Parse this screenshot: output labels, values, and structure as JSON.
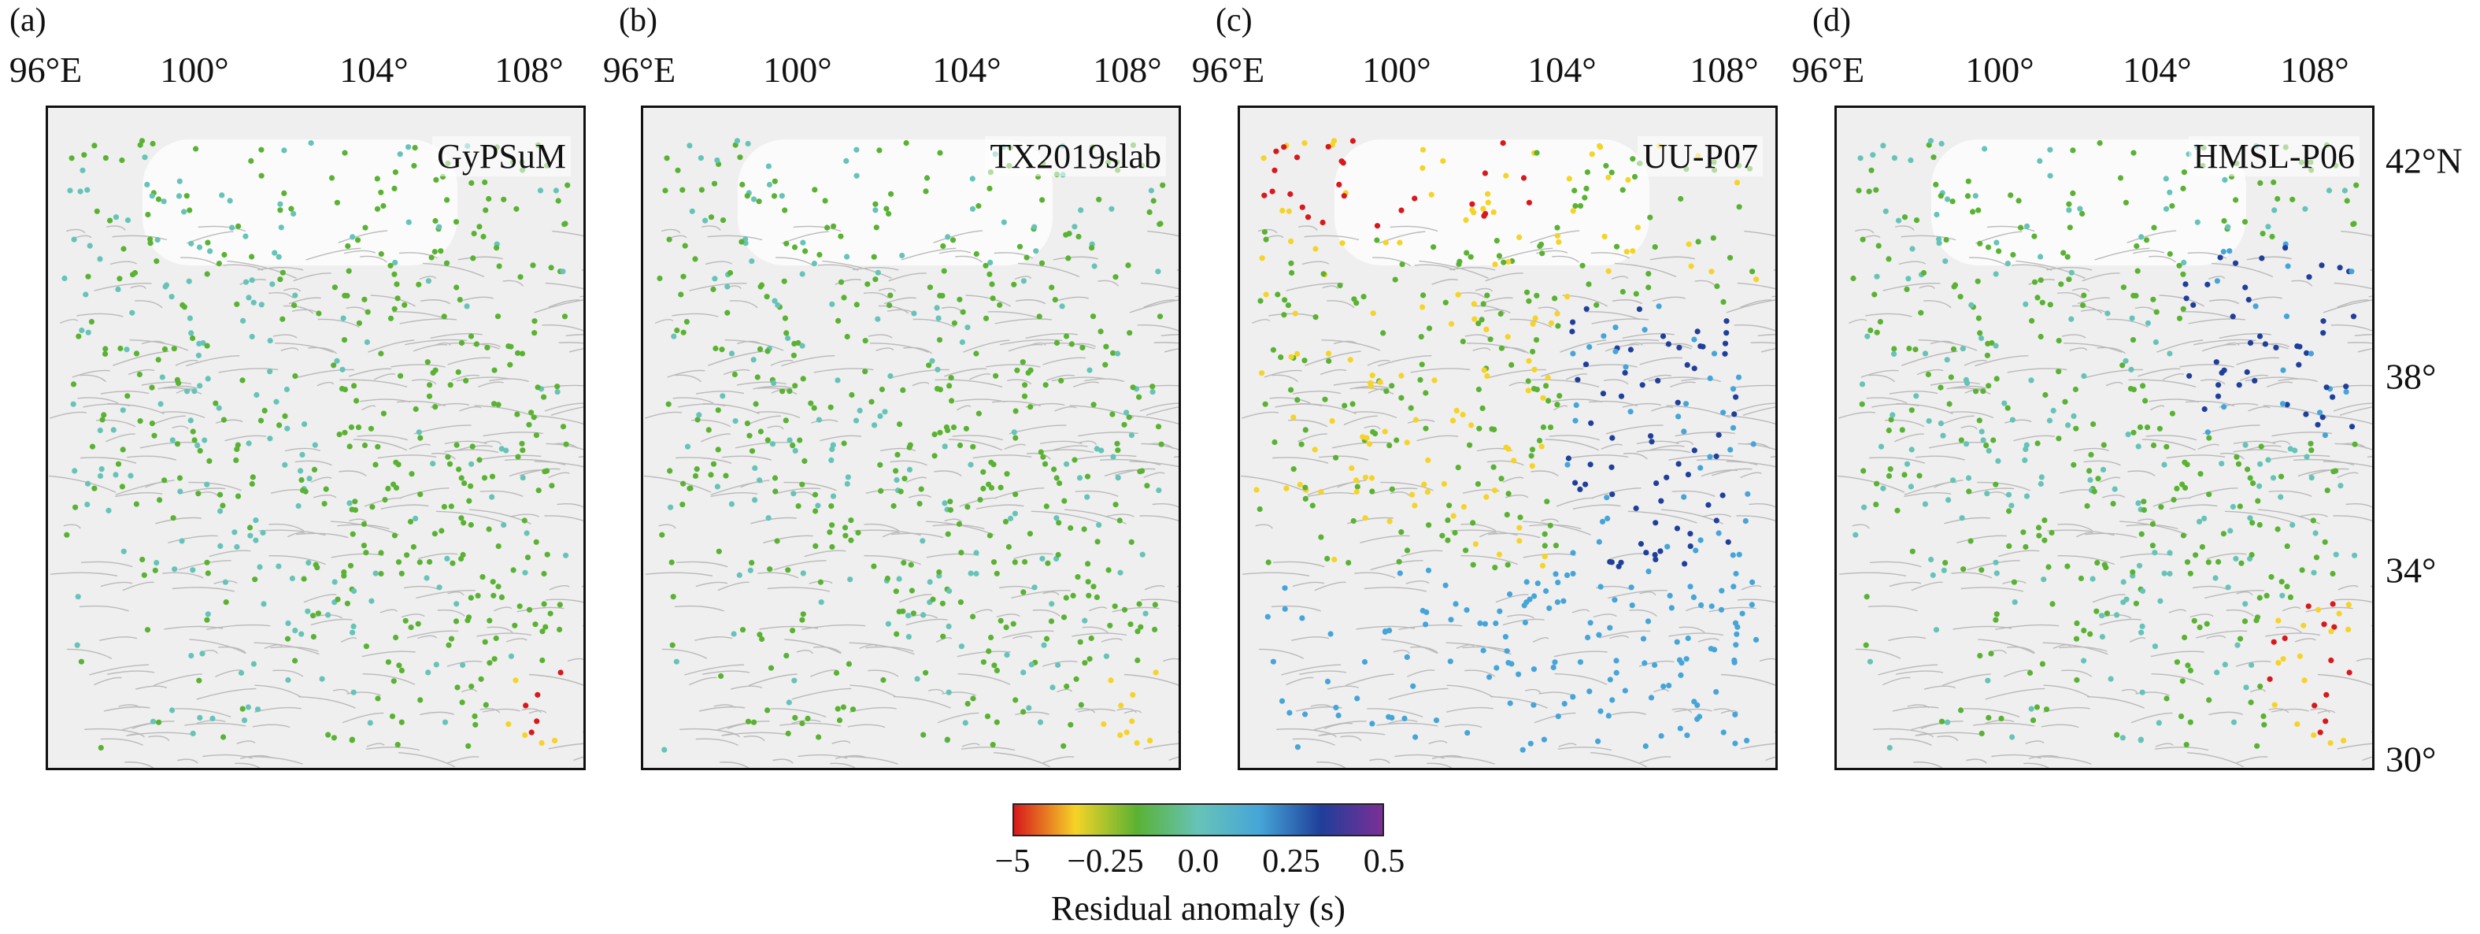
{
  "panels": [
    {
      "letter": "(a)",
      "model": "GyPSuM"
    },
    {
      "letter": "(b)",
      "model": "TX2019slab"
    },
    {
      "letter": "(c)",
      "model": "UU-P07"
    },
    {
      "letter": "(d)",
      "model": "HMSL-P06"
    }
  ],
  "lon_labels": [
    "96°E",
    "100°",
    "104°",
    "108°"
  ],
  "lat_labels": [
    "42°N",
    "38°",
    "34°",
    "30°"
  ],
  "colorbar": {
    "ticks": [
      "−5",
      "−0.25",
      "0.0",
      "0.25",
      "0.5"
    ],
    "title": "Residual anomaly (s)",
    "colors": [
      "#d7191c",
      "#f5d327",
      "#5ab233",
      "#66c3b8",
      "#46a5d8",
      "#1f3f9a",
      "#7b2f96"
    ]
  }
}
